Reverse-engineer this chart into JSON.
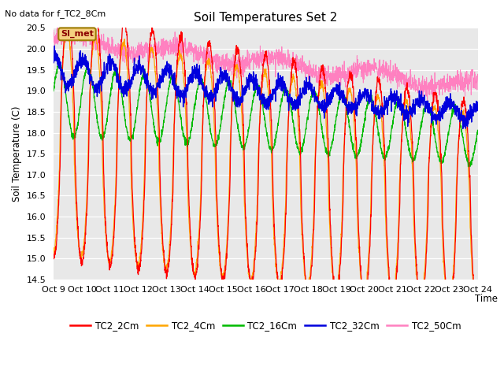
{
  "title": "Soil Temperatures Set 2",
  "note": "No data for f_TC2_8Cm",
  "ylabel": "Soil Temperature (C)",
  "xlabel": "Time",
  "ylim": [
    14.5,
    20.5
  ],
  "yticks": [
    14.5,
    15.0,
    15.5,
    16.0,
    16.5,
    17.0,
    17.5,
    18.0,
    18.5,
    19.0,
    19.5,
    20.0,
    20.5
  ],
  "xtick_labels": [
    "Oct 9",
    "Oct 10",
    "Oct 11",
    "Oct 12",
    "Oct 13",
    "Oct 14",
    "Oct 15",
    "Oct 16",
    "Oct 17",
    "Oct 18",
    "Oct 19",
    "Oct 20",
    "Oct 21",
    "Oct 22",
    "Oct 23",
    "Oct 24"
  ],
  "legend_entries": [
    "TC2_2Cm",
    "TC2_4Cm",
    "TC2_16Cm",
    "TC2_32Cm",
    "TC2_50Cm"
  ],
  "colors": [
    "#ff0000",
    "#ffa500",
    "#00bb00",
    "#0000dd",
    "#ff80c0"
  ],
  "si_met_label": "SI_met",
  "background_color": "#e8e8e8",
  "figure_color": "#ffffff",
  "num_points": 2160
}
